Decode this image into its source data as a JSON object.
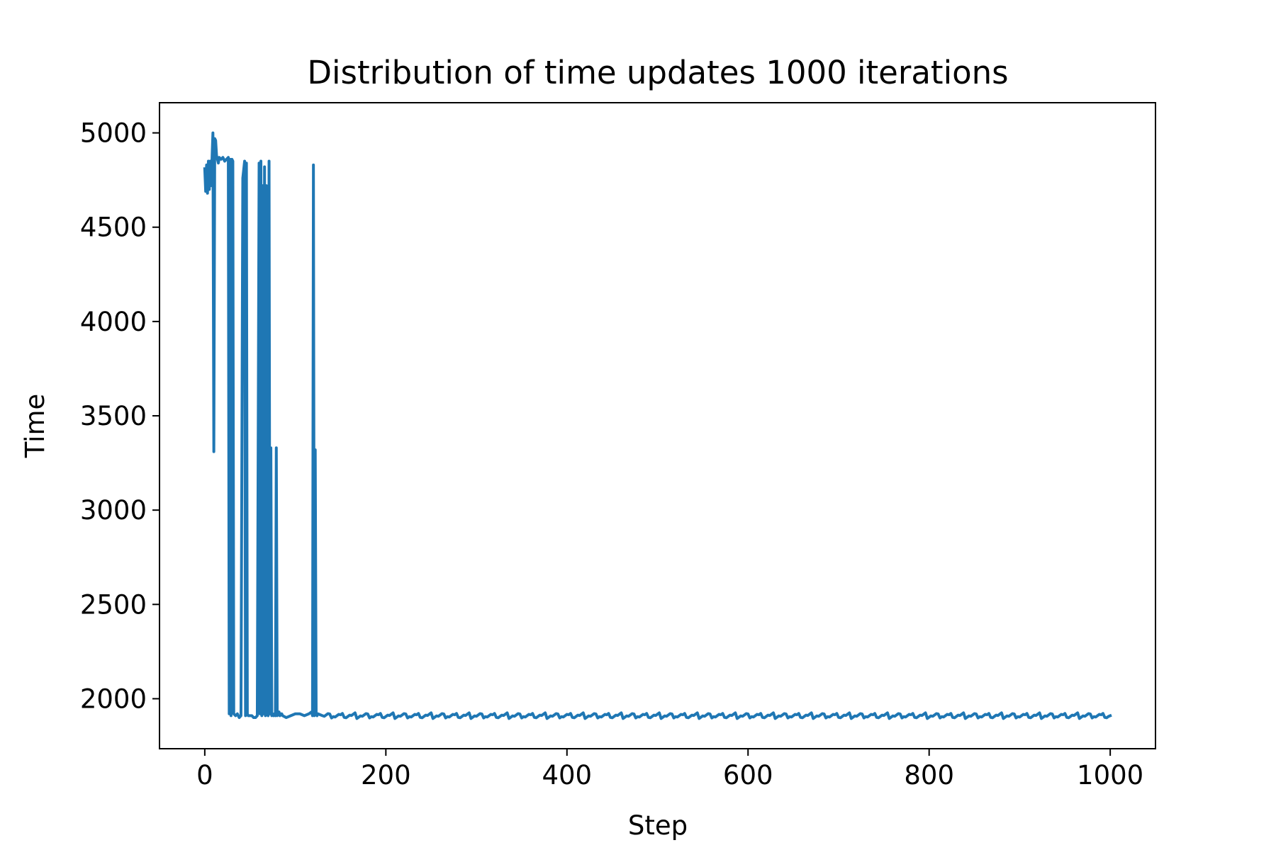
{
  "chart_data": {
    "type": "line",
    "title": "Distribution of time updates 1000 iterations",
    "xlabel": "Step",
    "ylabel": "Time",
    "xlim": [
      -50,
      1050
    ],
    "ylim": [
      1735,
      5160
    ],
    "xticks": [
      0,
      200,
      400,
      600,
      800,
      1000
    ],
    "yticks": [
      2000,
      2500,
      3000,
      3500,
      4000,
      4500,
      5000
    ],
    "grid": false,
    "color": "#1f77b4",
    "series": [
      {
        "x": [
          0,
          1,
          2,
          3,
          4,
          5,
          6,
          7,
          8,
          9,
          10,
          11,
          12,
          13,
          14,
          15,
          16,
          18,
          20,
          22,
          24,
          26,
          27,
          28,
          29,
          30,
          31,
          32,
          34,
          36,
          38,
          40,
          42,
          44,
          45,
          46,
          47,
          48,
          50,
          52,
          54,
          56,
          58,
          60,
          61,
          62,
          63,
          64,
          65,
          66,
          67,
          68,
          69,
          70,
          71,
          72,
          73,
          74,
          75,
          76,
          77,
          78,
          79,
          80,
          81,
          82,
          83,
          84,
          85,
          86,
          90,
          95,
          100,
          105,
          110,
          115,
          118,
          119,
          120,
          121,
          122,
          123,
          124,
          125,
          130,
          1000
        ],
        "y": [
          4810,
          4690,
          4830,
          4680,
          4850,
          4700,
          4850,
          4720,
          4860,
          5000,
          3310,
          4970,
          4960,
          4880,
          4860,
          4840,
          4870,
          4860,
          4870,
          4850,
          4860,
          4870,
          1920,
          4860,
          1910,
          4860,
          4850,
          1920,
          1910,
          1920,
          1900,
          1910,
          4760,
          4850,
          1910,
          4840,
          1920,
          1910,
          1910,
          1910,
          1900,
          1900,
          1910,
          4840,
          1920,
          4850,
          1910,
          4720,
          1920,
          4820,
          1910,
          4720,
          1920,
          1910,
          4850,
          1920,
          3330,
          1910,
          1920,
          1910,
          1920,
          1910,
          3330,
          1910,
          1920,
          1930,
          1910,
          1920,
          1920,
          1910,
          1900,
          1910,
          1920,
          1920,
          1910,
          1920,
          1930,
          1910,
          4830,
          1910,
          3320,
          1920,
          1910,
          1920,
          1910,
          1910
        ]
      }
    ]
  }
}
